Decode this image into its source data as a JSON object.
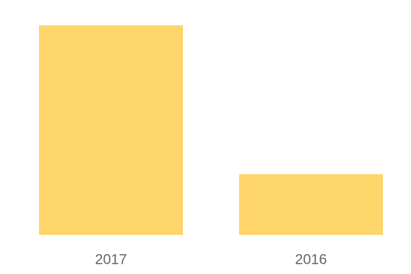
{
  "chart_data": {
    "type": "bar",
    "categories": [
      "2017",
      "2016"
    ],
    "values": [
      100,
      29
    ],
    "color": "#fed56b",
    "ylim": [
      0,
      100
    ]
  }
}
